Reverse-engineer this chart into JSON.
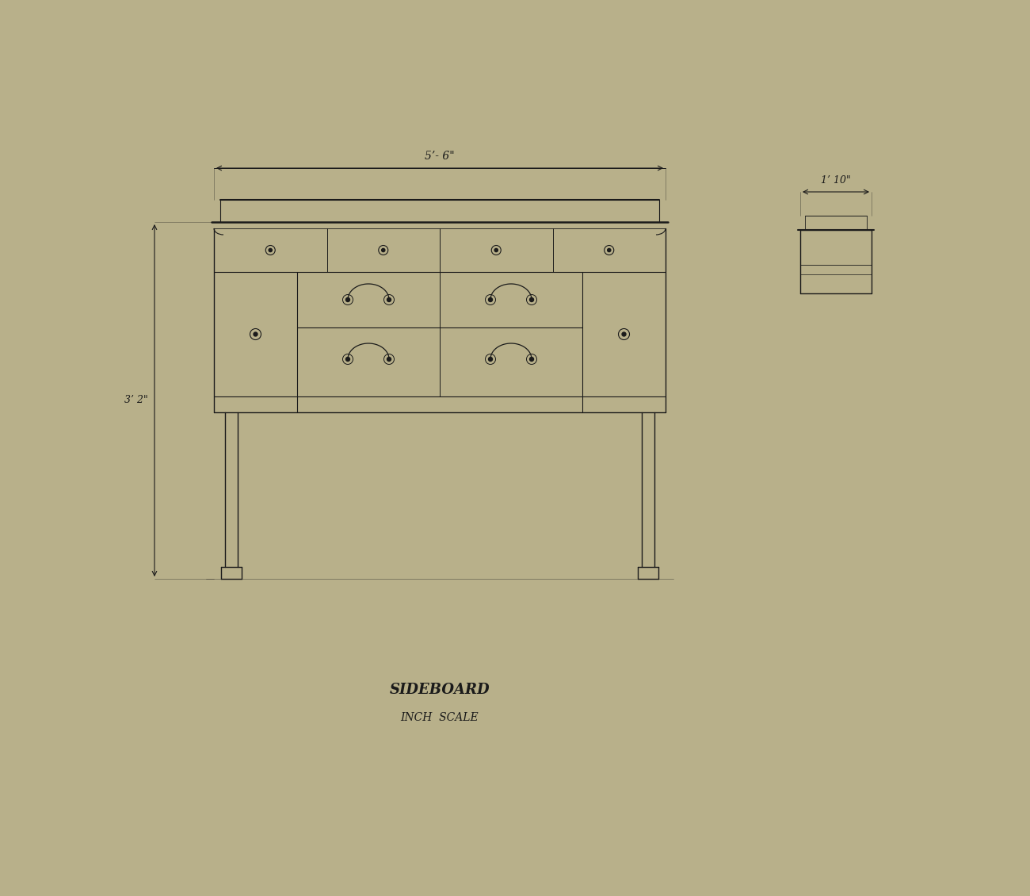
{
  "bg_color": "#b8b08a",
  "paper_color": "#cec99e",
  "line_color": "#1a1a1a",
  "line_width": 1.0,
  "title1": "SIDEBOARD",
  "title2": "INCH  SCALE",
  "dim_width": "5’- 6\"",
  "dim_height": "3’ 2\"",
  "dim_side": "1’ 10\""
}
